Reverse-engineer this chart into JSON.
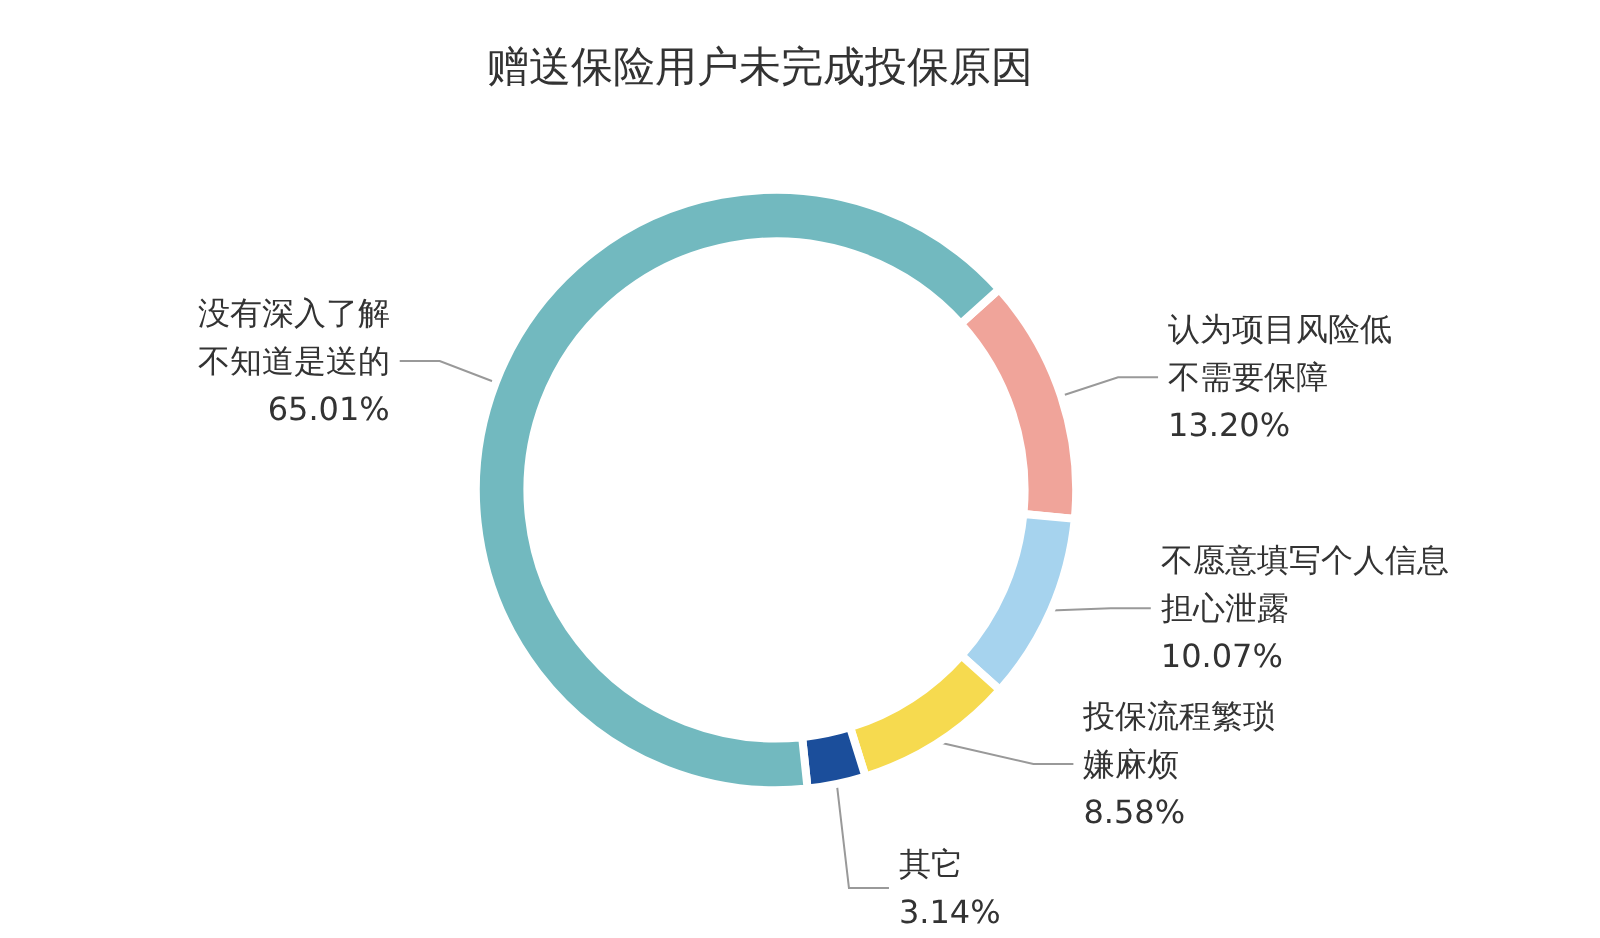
{
  "chart_data": {
    "type": "donut",
    "title": "赠送保险用户未完成投保原因",
    "categories": [
      "认为项目风险低不需要保障",
      "不愿意填写个人信息担心泄露",
      "投保流程繁琐嫌麻烦",
      "其它",
      "没有深入了解不知道是送的"
    ],
    "values": [
      13.2,
      10.07,
      8.58,
      3.14,
      65.01
    ],
    "value_labels": [
      "13.20%",
      "10.07%",
      "8.58%",
      "3.14%",
      "65.01%"
    ],
    "colors": [
      "#f0a49a",
      "#a6d3ee",
      "#f6da4f",
      "#1b4e9b",
      "#72b9bf"
    ],
    "legend": false
  }
}
